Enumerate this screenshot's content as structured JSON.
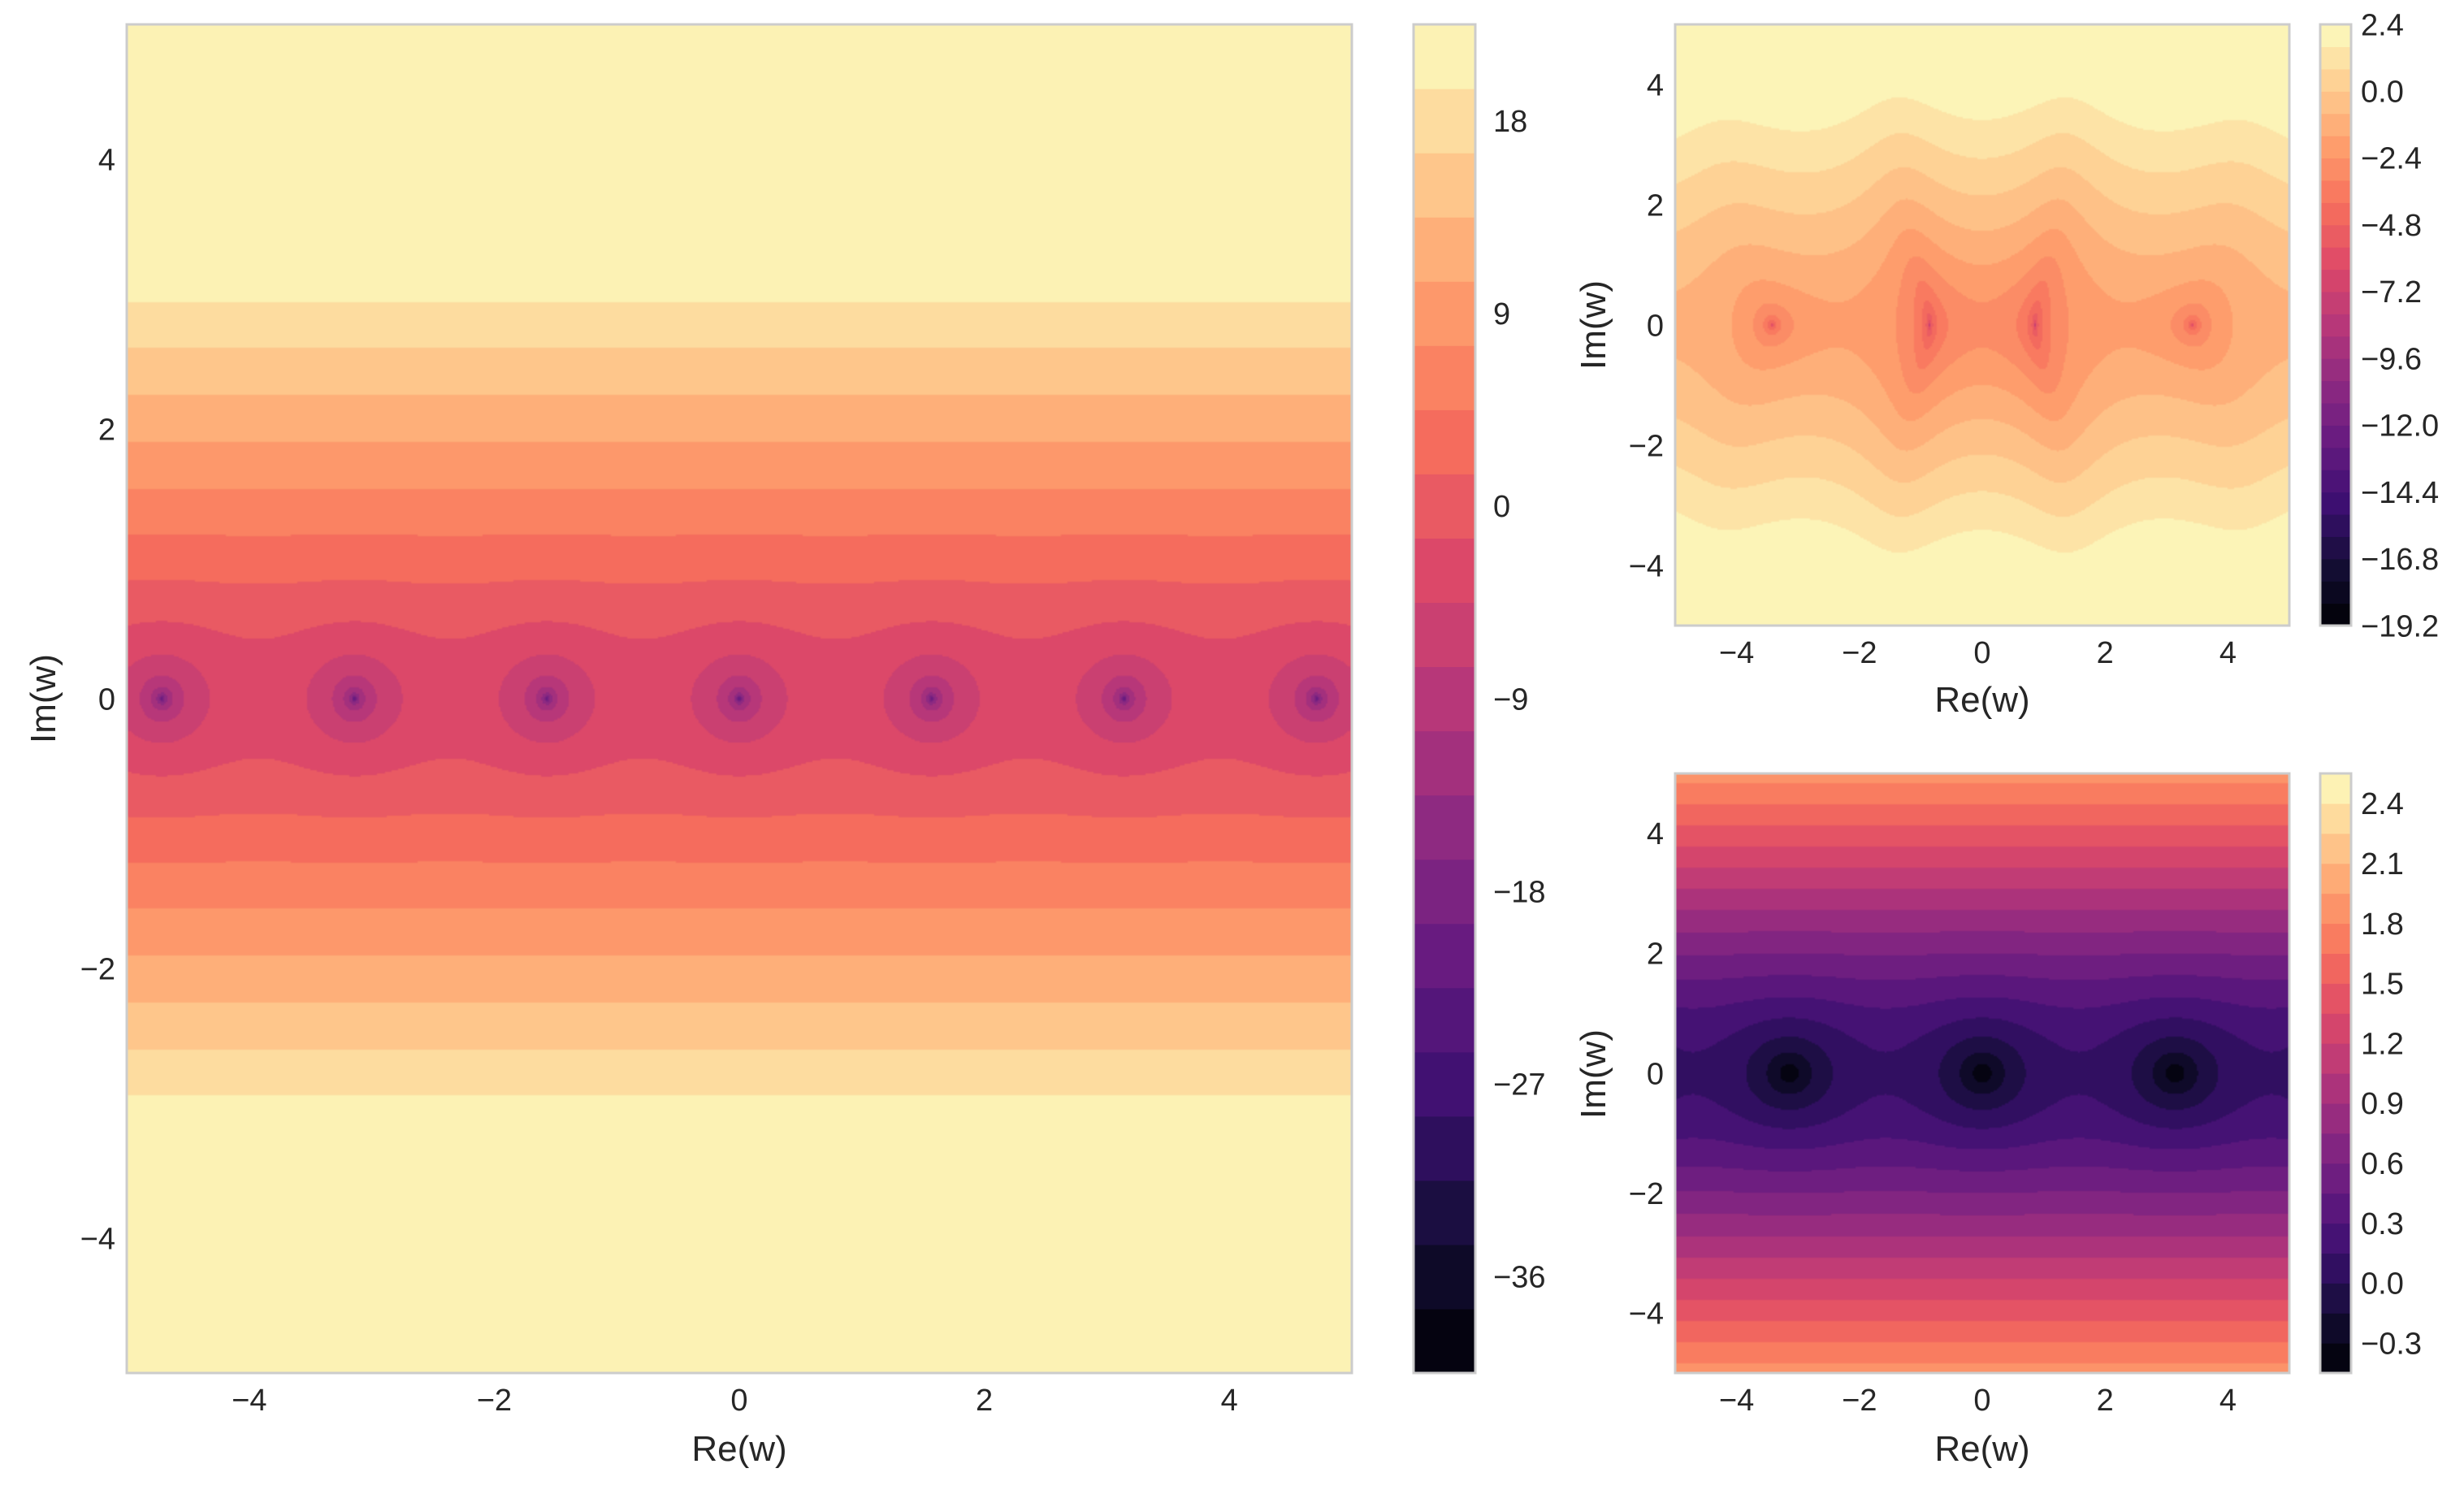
{
  "chart_data": [
    {
      "type": "heatmap",
      "subtype": "filled-contour",
      "xlabel": "Re(w)",
      "ylabel": "Im(w)",
      "xlim": [
        -5,
        5
      ],
      "ylim": [
        -5,
        5
      ],
      "x_ticks": [
        "−4",
        "−2",
        "0",
        "2",
        "4"
      ],
      "y_ticks": [
        "−4",
        "−2",
        "0",
        "2",
        "4"
      ],
      "colormap": "magma",
      "grid": false,
      "colorbar": {
        "levels": [
          -40.5,
          22.5
        ],
        "n_bands": 21,
        "tick_values": [
          -36,
          -27,
          -18,
          -9,
          0,
          9,
          18
        ],
        "tick_labels": [
          "−36",
          "−27",
          "−18",
          "−9",
          "0",
          "9",
          "18"
        ]
      },
      "features": {
        "singular_points_on_real_axis": [
          -4.71,
          -3.14,
          -1.57,
          1.57,
          3.14,
          4.71
        ]
      }
    },
    {
      "type": "heatmap",
      "subtype": "filled-contour",
      "xlabel": "Re(w)",
      "ylabel": "Im(w)",
      "xlim": [
        -5,
        5
      ],
      "ylim": [
        -5,
        5
      ],
      "x_ticks": [
        "−4",
        "−2",
        "0",
        "2",
        "4"
      ],
      "y_ticks": [
        "−4",
        "−2",
        "0",
        "2",
        "4"
      ],
      "colormap": "magma",
      "grid": false,
      "colorbar": {
        "levels": [
          -19.2,
          2.4
        ],
        "n_bands": 27,
        "tick_values": [
          2.4,
          0.0,
          -2.4,
          -4.8,
          -7.2,
          -9.6,
          -12.0,
          -14.4,
          -16.8,
          -19.2
        ],
        "tick_labels": [
          "2.4",
          "0.0",
          "−2.4",
          "−4.8",
          "−7.2",
          "−9.6",
          "−12.0",
          "−14.4",
          "−16.8",
          "−19.2"
        ]
      }
    },
    {
      "type": "heatmap",
      "subtype": "filled-contour",
      "xlabel": "Re(w)",
      "ylabel": "Im(w)",
      "xlim": [
        -5,
        5
      ],
      "ylim": [
        -5,
        5
      ],
      "x_ticks": [
        "−4",
        "−2",
        "0",
        "2",
        "4"
      ],
      "y_ticks": [
        "−4",
        "−2",
        "0",
        "2",
        "4"
      ],
      "colormap": "magma",
      "grid": false,
      "colorbar": {
        "levels": [
          -0.45,
          2.55
        ],
        "n_bands": 20,
        "tick_values": [
          2.4,
          2.1,
          1.8,
          1.5,
          1.2,
          0.9,
          0.6,
          0.3,
          0.0,
          -0.3
        ],
        "tick_labels": [
          "2.4",
          "2.1",
          "1.8",
          "1.5",
          "1.2",
          "0.9",
          "0.6",
          "0.3",
          "0.0",
          "−0.3"
        ]
      }
    }
  ]
}
